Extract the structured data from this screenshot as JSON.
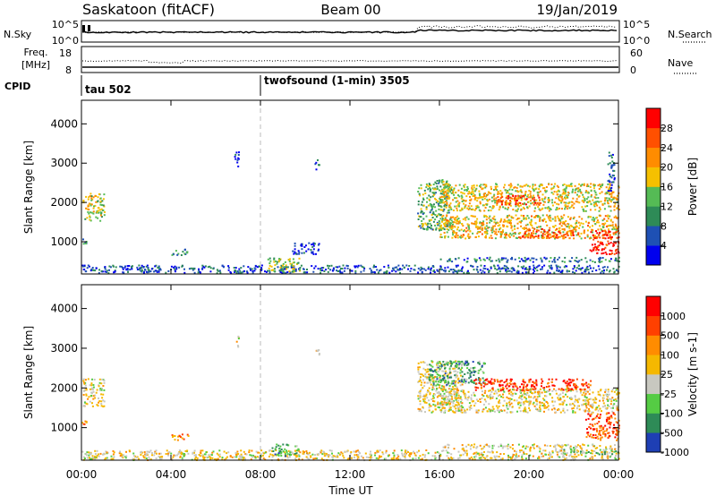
{
  "header": {
    "station": "Saskatoon (fitACF)",
    "beam": "Beam 00",
    "date": "19/Jan/2019"
  },
  "noise_panel": {
    "left_label": "N.Sky",
    "right_label": "N.Search",
    "ytick_top_left": "10^5",
    "ytick_bottom_left": "10^0",
    "ytick_top_right": "10^5",
    "ytick_bottom_right": "10^0"
  },
  "freq_panel": {
    "left_label_line1": "Freq.",
    "left_label_line2": "[MHz]",
    "right_label": "Nave",
    "ytick_top_left": "18",
    "ytick_bottom_left": "8",
    "ytick_top_right": "60",
    "ytick_bottom_right": "0"
  },
  "cpid": {
    "label": "CPID",
    "modes": [
      {
        "start_hour": 0,
        "text": "tau 502"
      },
      {
        "start_hour": 8,
        "text": "twofsound (1-min) 3505"
      }
    ]
  },
  "time_axis": {
    "label": "Time UT",
    "range_hours": [
      0,
      24
    ],
    "ticks": [
      {
        "hour": 0,
        "label": "00:00"
      },
      {
        "hour": 4,
        "label": "04:00"
      },
      {
        "hour": 8,
        "label": "08:00"
      },
      {
        "hour": 12,
        "label": "12:00"
      },
      {
        "hour": 16,
        "label": "16:00"
      },
      {
        "hour": 20,
        "label": "20:00"
      },
      {
        "hour": 24,
        "label": "00:00"
      }
    ]
  },
  "chart_data": [
    {
      "type": "heatmap",
      "title": "Power",
      "ylabel": "Slant Range [km]",
      "ylim": [
        180,
        4600
      ],
      "yticks": [
        1000,
        2000,
        3000,
        4000
      ],
      "colorbar": {
        "label": "Power [dB]",
        "range": [
          0,
          32
        ],
        "ticks": [
          4,
          8,
          12,
          16,
          20,
          24,
          28
        ],
        "colors": [
          "#0000ee",
          "#1e50b4",
          "#2e8b57",
          "#55bb55",
          "#f5c000",
          "#ff8c00",
          "#ff5000",
          "#ff0000"
        ]
      },
      "regions": [
        {
          "t": [
            0.05,
            1.0
          ],
          "r": [
            1550,
            2250
          ],
          "level": 0.5
        },
        {
          "t": [
            0.0,
            0.2
          ],
          "r": [
            950,
            1100
          ],
          "level": 0.3
        },
        {
          "t": [
            0.0,
            24.0
          ],
          "r": [
            220,
            420
          ],
          "level": 0.2
        },
        {
          "t": [
            4.0,
            4.8
          ],
          "r": [
            680,
            830
          ],
          "level": 0.3
        },
        {
          "t": [
            8.3,
            9.8
          ],
          "r": [
            250,
            600
          ],
          "level": 0.45
        },
        {
          "t": [
            9.4,
            10.6
          ],
          "r": [
            700,
            1000
          ],
          "level": 0.1
        },
        {
          "t": [
            6.8,
            7.0
          ],
          "r": [
            2900,
            3350
          ],
          "level": 0.1
        },
        {
          "t": [
            10.4,
            10.6
          ],
          "r": [
            2850,
            3100
          ],
          "level": 0.15
        },
        {
          "t": [
            15.0,
            16.5
          ],
          "r": [
            1300,
            2600
          ],
          "level": 0.4
        },
        {
          "t": [
            16.0,
            24.0
          ],
          "r": [
            1800,
            2500
          ],
          "level": 0.55
        },
        {
          "t": [
            16.0,
            24.0
          ],
          "r": [
            1100,
            1700
          ],
          "level": 0.6
        },
        {
          "t": [
            18.5,
            20.5
          ],
          "r": [
            1950,
            2200
          ],
          "level": 0.85
        },
        {
          "t": [
            19.5,
            22.5
          ],
          "r": [
            1100,
            1350
          ],
          "level": 0.8
        },
        {
          "t": [
            22.7,
            24.0
          ],
          "r": [
            700,
            1300
          ],
          "level": 0.9
        },
        {
          "t": [
            16.0,
            24.0
          ],
          "r": [
            500,
            620
          ],
          "level": 0.25
        },
        {
          "t": [
            23.5,
            23.8
          ],
          "r": [
            2300,
            3300
          ],
          "level": 0.2
        }
      ]
    },
    {
      "type": "heatmap",
      "title": "Velocity",
      "ylabel": "Slant Range [km]",
      "ylim": [
        180,
        4600
      ],
      "yticks": [
        1000,
        2000,
        3000,
        4000
      ],
      "colorbar": {
        "label": "Velocity [m s-1]",
        "range": [
          -1000,
          1000
        ],
        "ticks": [
          1000,
          500,
          100,
          25,
          -25,
          -100,
          -500,
          -1000
        ],
        "colors": [
          "#1e3fb4",
          "#2e8b57",
          "#55cc44",
          "#c8c8c0",
          "#f5b800",
          "#ff8c00",
          "#ff4000",
          "#ff0000"
        ]
      },
      "regions": [
        {
          "t": [
            0.05,
            1.0
          ],
          "r": [
            1550,
            2250
          ],
          "level": 0.5
        },
        {
          "t": [
            0.0,
            0.2
          ],
          "r": [
            1100,
            1200
          ],
          "level": 0.7
        },
        {
          "t": [
            4.0,
            4.8
          ],
          "r": [
            700,
            850
          ],
          "level": 0.7
        },
        {
          "t": [
            0.0,
            24.0
          ],
          "r": [
            200,
            450
          ],
          "level": 0.5
        },
        {
          "t": [
            8.5,
            9.7
          ],
          "r": [
            300,
            600
          ],
          "level": 0.25
        },
        {
          "t": [
            6.9,
            7.0
          ],
          "r": [
            3000,
            3350
          ],
          "level": 0.5
        },
        {
          "t": [
            10.4,
            10.6
          ],
          "r": [
            2850,
            3100
          ],
          "level": 0.5
        },
        {
          "t": [
            15.0,
            17.0
          ],
          "r": [
            1400,
            2700
          ],
          "level": 0.5
        },
        {
          "t": [
            16.0,
            24.0
          ],
          "r": [
            1400,
            2000
          ],
          "level": 0.5
        },
        {
          "t": [
            15.5,
            18.0
          ],
          "r": [
            2100,
            2700
          ],
          "level": 0.25
        },
        {
          "t": [
            17.5,
            22.8
          ],
          "r": [
            1950,
            2250
          ],
          "level": 0.85
        },
        {
          "t": [
            22.5,
            24.0
          ],
          "r": [
            700,
            1400
          ],
          "level": 0.8
        },
        {
          "t": [
            16.0,
            24.0
          ],
          "r": [
            480,
            600
          ],
          "level": 0.5
        },
        {
          "t": [
            21.5,
            24.0
          ],
          "r": [
            350,
            480
          ],
          "level": 0.3
        }
      ]
    }
  ]
}
